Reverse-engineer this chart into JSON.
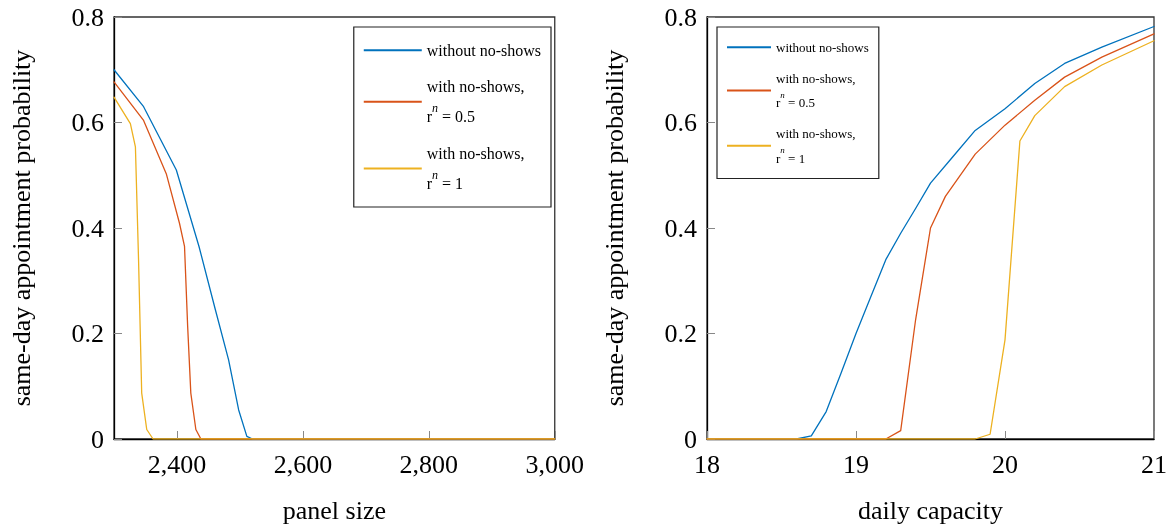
{
  "chart_data": [
    {
      "type": "line",
      "xlabel": "panel size",
      "ylabel": "same-day appointment probability",
      "xlim": [
        2300,
        3000
      ],
      "xticks": [
        {
          "value": 2400,
          "label": "2,400"
        },
        {
          "value": 2600,
          "label": "2,600"
        },
        {
          "value": 2800,
          "label": "2,800"
        },
        {
          "value": 3000,
          "label": "3,000"
        }
      ],
      "ylim": [
        0,
        0.8
      ],
      "yticks": [
        0,
        0.2,
        0.4,
        0.6,
        0.8
      ],
      "grid": false,
      "legend": "top right",
      "marker": "none",
      "line_style": "solid",
      "series": [
        {
          "name": "without no-shows",
          "color": "#0072bd",
          "x": [
            2300,
            2347,
            2399,
            2435,
            2461,
            2482,
            2498,
            2511,
            2520,
            3000
          ],
          "values": [
            0.7,
            0.63,
            0.51,
            0.365,
            0.245,
            0.15,
            0.055,
            0.005,
            0,
            0
          ]
        },
        {
          "name": "with no-shows,\nr$^{n}$ = 0.5",
          "color": "#d95319",
          "x": [
            2300,
            2347,
            2383,
            2404,
            2412,
            2417,
            2422,
            2430,
            2438,
            3000
          ],
          "values": [
            0.677,
            0.604,
            0.503,
            0.409,
            0.365,
            0.213,
            0.087,
            0.018,
            0,
            0
          ]
        },
        {
          "name": "with no-shows,\nr$^{n}$ = 1",
          "color": "#edb120",
          "x": [
            2300,
            2326,
            2334,
            2339,
            2344,
            2352,
            2362,
            3000
          ],
          "values": [
            0.648,
            0.598,
            0.554,
            0.339,
            0.087,
            0.018,
            0,
            0
          ]
        }
      ]
    },
    {
      "type": "line",
      "xlabel": "daily capacity",
      "ylabel": "same-day appointment probability",
      "xlim": [
        18,
        21
      ],
      "xticks": [
        18,
        19,
        20,
        21
      ],
      "ylim": [
        0,
        0.8
      ],
      "yticks": [
        0,
        0.2,
        0.4,
        0.6,
        0.8
      ],
      "grid": false,
      "legend": "top left",
      "marker": "none",
      "line_style": "solid",
      "series": [
        {
          "name": "without no-shows",
          "color": "#0072bd",
          "x": [
            18,
            18.6,
            18.7,
            18.8,
            18.9,
            19.0,
            19.1,
            19.2,
            19.3,
            19.4,
            19.5,
            19.65,
            19.8,
            20.0,
            20.2,
            20.4,
            20.65,
            21
          ],
          "values": [
            0,
            0,
            0.006,
            0.052,
            0.125,
            0.2,
            0.27,
            0.34,
            0.39,
            0.437,
            0.485,
            0.535,
            0.585,
            0.626,
            0.674,
            0.712,
            0.743,
            0.782
          ]
        },
        {
          "name": "with no-shows,\nr$^{n}$ = 0.5",
          "color": "#d95319",
          "x": [
            18,
            19.2,
            19.3,
            19.4,
            19.5,
            19.6,
            19.8,
            20.0,
            20.2,
            20.4,
            20.65,
            21
          ],
          "values": [
            0,
            0,
            0.016,
            0.226,
            0.4,
            0.46,
            0.54,
            0.595,
            0.642,
            0.686,
            0.724,
            0.768
          ]
        },
        {
          "name": "with no-shows,\nr$^{n}$ = 1",
          "color": "#edb120",
          "x": [
            18,
            19.8,
            19.9,
            20.0,
            20.1,
            20.2,
            20.4,
            20.65,
            21
          ],
          "values": [
            0,
            0,
            0.009,
            0.188,
            0.565,
            0.613,
            0.668,
            0.709,
            0.755
          ]
        }
      ]
    }
  ]
}
